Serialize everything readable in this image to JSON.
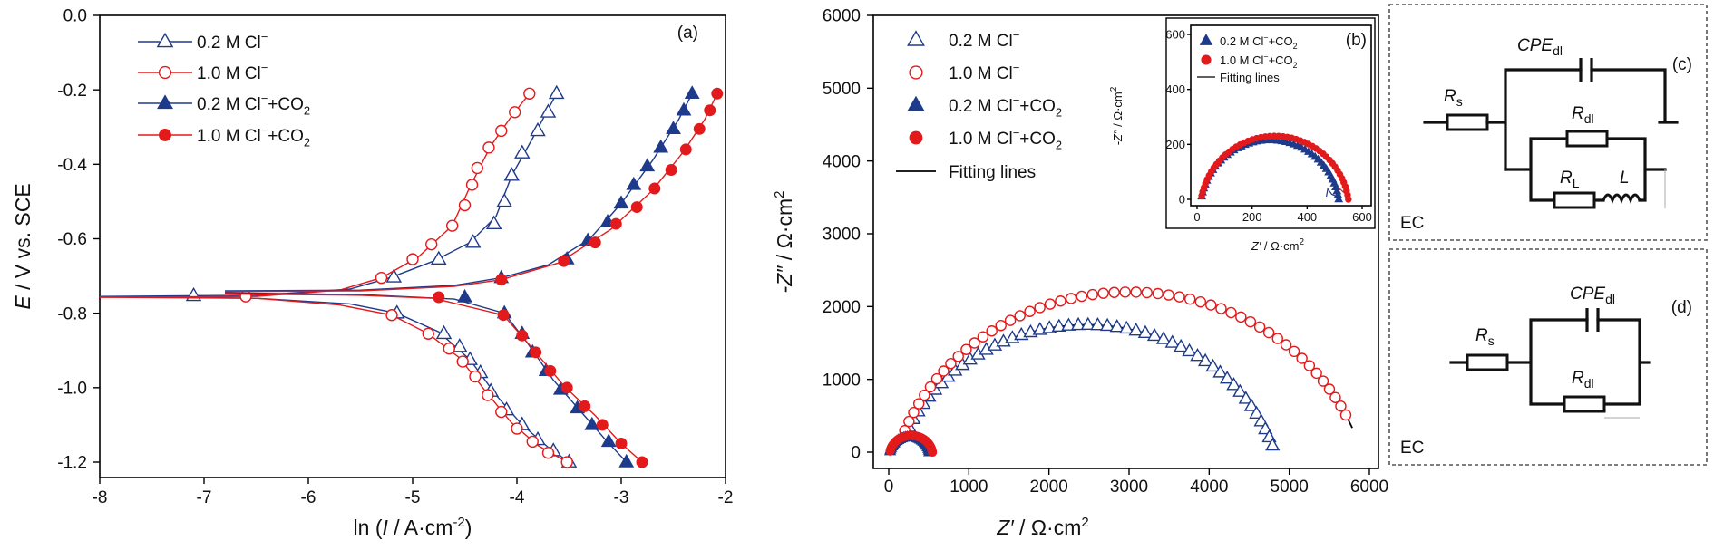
{
  "colors": {
    "blue": "#1e3a8a",
    "red": "#e31a1c",
    "fit": "#000000"
  },
  "chart_data": [
    {
      "type": "line",
      "panel_label": "(a)",
      "xlabel_main": "ln (",
      "xlabel_var": "I",
      "xlabel_unit": " / A·cm",
      "xlabel_sup": "-2",
      "xlabel_close": ")",
      "ylabel_var": "E",
      "ylabel_unit": " / V vs. SCE",
      "xlim": [
        -8,
        -2
      ],
      "ylim": [
        -1.25,
        0.0
      ],
      "xticks": [
        "-8",
        "-7",
        "-6",
        "-5",
        "-4",
        "-3",
        "-2"
      ],
      "xtick_values": [
        -8,
        -7,
        -6,
        -5,
        -4,
        -3,
        -2
      ],
      "yticks": [
        "0.0",
        "-0.2",
        "-0.4",
        "-0.6",
        "-0.8",
        "-1.0",
        "-1.2"
      ],
      "ytick_values": [
        0.0,
        -0.2,
        -0.4,
        -0.6,
        -0.8,
        -1.0,
        -1.2
      ],
      "legend_position": "upper-left",
      "series": [
        {
          "base": "0.2 M Cl",
          "sup": "−",
          "sub": "",
          "sub_tail": "",
          "color": "blue",
          "marker": "triangle-open",
          "points": [
            [
              -7.1,
              -0.753
            ],
            [
              -5.18,
              -0.703
            ],
            [
              -4.75,
              -0.655
            ],
            [
              -4.42,
              -0.61
            ],
            [
              -4.22,
              -0.56
            ],
            [
              -4.12,
              -0.5
            ],
            [
              -4.05,
              -0.43
            ],
            [
              -3.95,
              -0.37
            ],
            [
              -3.8,
              -0.31
            ],
            [
              -3.7,
              -0.26
            ],
            [
              -3.62,
              -0.21
            ],
            [
              -5.15,
              -0.8
            ],
            [
              -4.7,
              -0.855
            ],
            [
              -4.55,
              -0.89
            ],
            [
              -4.45,
              -0.925
            ],
            [
              -4.35,
              -0.96
            ],
            [
              -4.25,
              -1.01
            ],
            [
              -4.1,
              -1.06
            ],
            [
              -3.95,
              -1.1
            ],
            [
              -3.8,
              -1.14
            ],
            [
              -3.65,
              -1.17
            ],
            [
              -3.5,
              -1.2
            ]
          ],
          "branches": [
            [
              [
                -8.0,
                -0.755
              ],
              [
                -6.5,
                -0.752
              ],
              [
                -5.6,
                -0.735
              ],
              [
                -5.2,
                -0.703
              ],
              [
                -4.8,
                -0.66
              ],
              [
                -4.45,
                -0.61
              ],
              [
                -4.2,
                -0.54
              ],
              [
                -4.05,
                -0.43
              ],
              [
                -3.85,
                -0.33
              ],
              [
                -3.62,
                -0.21
              ]
            ],
            [
              [
                -8.0,
                -0.755
              ],
              [
                -6.5,
                -0.76
              ],
              [
                -5.6,
                -0.775
              ],
              [
                -5.15,
                -0.8
              ],
              [
                -4.75,
                -0.85
              ],
              [
                -4.45,
                -0.925
              ],
              [
                -4.2,
                -1.02
              ],
              [
                -3.95,
                -1.1
              ],
              [
                -3.7,
                -1.16
              ],
              [
                -3.5,
                -1.2
              ]
            ]
          ]
        },
        {
          "base": "1.0 M Cl",
          "sup": "−",
          "sub": "",
          "sub_tail": "",
          "color": "red",
          "marker": "circle-open",
          "points": [
            [
              -6.6,
              -0.755
            ],
            [
              -5.3,
              -0.705
            ],
            [
              -5.0,
              -0.655
            ],
            [
              -4.82,
              -0.615
            ],
            [
              -4.62,
              -0.565
            ],
            [
              -4.5,
              -0.51
            ],
            [
              -4.43,
              -0.455
            ],
            [
              -4.38,
              -0.41
            ],
            [
              -4.27,
              -0.355
            ],
            [
              -4.15,
              -0.31
            ],
            [
              -4.02,
              -0.26
            ],
            [
              -3.88,
              -0.21
            ],
            [
              -5.2,
              -0.805
            ],
            [
              -4.85,
              -0.855
            ],
            [
              -4.65,
              -0.895
            ],
            [
              -4.52,
              -0.93
            ],
            [
              -4.4,
              -0.97
            ],
            [
              -4.28,
              -1.02
            ],
            [
              -4.15,
              -1.065
            ],
            [
              -4.0,
              -1.11
            ],
            [
              -3.85,
              -1.145
            ],
            [
              -3.7,
              -1.175
            ],
            [
              -3.52,
              -1.2
            ]
          ],
          "branches": [
            [
              [
                -8.0,
                -0.757
              ],
              [
                -6.5,
                -0.755
              ],
              [
                -5.7,
                -0.738
              ],
              [
                -5.3,
                -0.705
              ],
              [
                -4.95,
                -0.65
              ],
              [
                -4.62,
                -0.565
              ],
              [
                -4.45,
                -0.46
              ],
              [
                -4.25,
                -0.35
              ],
              [
                -4.05,
                -0.27
              ],
              [
                -3.88,
                -0.21
              ]
            ],
            [
              [
                -8.0,
                -0.757
              ],
              [
                -6.5,
                -0.76
              ],
              [
                -5.7,
                -0.778
              ],
              [
                -5.2,
                -0.805
              ],
              [
                -4.85,
                -0.855
              ],
              [
                -4.55,
                -0.92
              ],
              [
                -4.3,
                -1.01
              ],
              [
                -4.05,
                -1.095
              ],
              [
                -3.8,
                -1.155
              ],
              [
                -3.52,
                -1.2
              ]
            ]
          ]
        },
        {
          "base": "0.2 M Cl",
          "sup": "−",
          "sub_prefix": "+CO",
          "sub": "2",
          "color": "blue",
          "marker": "triangle-filled",
          "points": [
            [
              -4.15,
              -0.705
            ],
            [
              -3.52,
              -0.655
            ],
            [
              -3.32,
              -0.605
            ],
            [
              -3.13,
              -0.555
            ],
            [
              -3.0,
              -0.505
            ],
            [
              -2.88,
              -0.455
            ],
            [
              -2.75,
              -0.405
            ],
            [
              -2.62,
              -0.355
            ],
            [
              -2.5,
              -0.305
            ],
            [
              -2.4,
              -0.255
            ],
            [
              -2.32,
              -0.21
            ],
            [
              -4.5,
              -0.757
            ],
            [
              -4.12,
              -0.8
            ],
            [
              -3.95,
              -0.855
            ],
            [
              -3.85,
              -0.905
            ],
            [
              -3.72,
              -0.955
            ],
            [
              -3.58,
              -1.005
            ],
            [
              -3.42,
              -1.055
            ],
            [
              -3.28,
              -1.1
            ],
            [
              -3.12,
              -1.145
            ],
            [
              -2.95,
              -1.2
            ]
          ],
          "branches": [
            [
              [
                -6.8,
                -0.74
              ],
              [
                -5.5,
                -0.738
              ],
              [
                -4.6,
                -0.725
              ],
              [
                -4.15,
                -0.705
              ],
              [
                -3.7,
                -0.67
              ],
              [
                -3.3,
                -0.6
              ],
              [
                -3.0,
                -0.505
              ],
              [
                -2.7,
                -0.39
              ],
              [
                -2.45,
                -0.28
              ],
              [
                -2.32,
                -0.21
              ]
            ],
            [
              [
                -6.8,
                -0.745
              ],
              [
                -5.5,
                -0.75
              ],
              [
                -4.6,
                -0.762
              ],
              [
                -4.12,
                -0.8
              ],
              [
                -3.9,
                -0.88
              ],
              [
                -3.65,
                -0.98
              ],
              [
                -3.4,
                -1.06
              ],
              [
                -3.15,
                -1.14
              ],
              [
                -2.95,
                -1.2
              ]
            ]
          ]
        },
        {
          "base": "1.0 M Cl",
          "sup": "−",
          "sub_prefix": "+CO",
          "sub": "2",
          "color": "red",
          "marker": "circle-filled",
          "points": [
            [
              -4.15,
              -0.71
            ],
            [
              -3.55,
              -0.66
            ],
            [
              -3.25,
              -0.61
            ],
            [
              -3.05,
              -0.56
            ],
            [
              -2.85,
              -0.515
            ],
            [
              -2.68,
              -0.465
            ],
            [
              -2.52,
              -0.415
            ],
            [
              -2.38,
              -0.36
            ],
            [
              -2.25,
              -0.305
            ],
            [
              -2.15,
              -0.255
            ],
            [
              -2.08,
              -0.21
            ],
            [
              -4.75,
              -0.757
            ],
            [
              -4.13,
              -0.805
            ],
            [
              -3.95,
              -0.86
            ],
            [
              -3.82,
              -0.905
            ],
            [
              -3.68,
              -0.955
            ],
            [
              -3.52,
              -1.0
            ],
            [
              -3.35,
              -1.05
            ],
            [
              -3.18,
              -1.1
            ],
            [
              -3.0,
              -1.15
            ],
            [
              -2.8,
              -1.2
            ]
          ],
          "branches": [
            [
              [
                -6.8,
                -0.742
              ],
              [
                -5.5,
                -0.74
              ],
              [
                -4.6,
                -0.728
              ],
              [
                -4.15,
                -0.71
              ],
              [
                -3.6,
                -0.665
              ],
              [
                -3.1,
                -0.575
              ],
              [
                -2.7,
                -0.47
              ],
              [
                -2.4,
                -0.365
              ],
              [
                -2.2,
                -0.28
              ],
              [
                -2.08,
                -0.21
              ]
            ],
            [
              [
                -6.8,
                -0.748
              ],
              [
                -5.5,
                -0.752
              ],
              [
                -4.8,
                -0.76
              ],
              [
                -4.13,
                -0.805
              ],
              [
                -3.85,
                -0.895
              ],
              [
                -3.55,
                -0.995
              ],
              [
                -3.25,
                -1.075
              ],
              [
                -3.0,
                -1.15
              ],
              [
                -2.8,
                -1.2
              ]
            ]
          ]
        }
      ]
    },
    {
      "type": "scatter",
      "panel_label": "",
      "xlabel_var": "Z′",
      "xlabel_unit": " / Ω·cm",
      "xlabel_sup": "2",
      "ylabel_var": "-Z″",
      "ylabel_unit": " / Ω·cm",
      "ylabel_sup": "2",
      "xlim": [
        -200,
        6000
      ],
      "ylim": [
        -200,
        6000
      ],
      "xticks": [
        "0",
        "1000",
        "2000",
        "3000",
        "4000",
        "5000",
        "6000"
      ],
      "xtick_values": [
        0,
        1000,
        2000,
        3000,
        4000,
        5000,
        6000
      ],
      "yticks": [
        "0",
        "1000",
        "2000",
        "3000",
        "4000",
        "5000",
        "6000"
      ],
      "ytick_values": [
        0,
        1000,
        2000,
        3000,
        4000,
        5000,
        6000
      ],
      "legend_position": "upper-left",
      "fit_label": "Fitting lines",
      "series": [
        {
          "base": "0.2 M Cl",
          "sup": "−",
          "sub_prefix": "",
          "sub": "",
          "color": "blue",
          "marker": "triangle-open",
          "arc": {
            "rs": 120,
            "rct": 4700,
            "depress": 0.7,
            "start": 0.04,
            "end": 0.985,
            "n": 50
          }
        },
        {
          "base": "1.0 M Cl",
          "sup": "−",
          "sub_prefix": "",
          "sub": "",
          "color": "red",
          "marker": "circle-open",
          "arc": {
            "rs": 100,
            "rct": 5800,
            "depress": 0.72,
            "start": 0.04,
            "end": 0.93,
            "n": 52
          }
        },
        {
          "base": "0.2 M Cl",
          "sup": "−",
          "sub_prefix": "+CO",
          "sub": "2",
          "color": "blue",
          "marker": "triangle-filled",
          "arc": {
            "rs": 15,
            "rct": 490,
            "depress": 0.85,
            "start": 0.02,
            "end": 1.0,
            "n": 30
          }
        },
        {
          "base": "1.0 M Cl",
          "sup": "−",
          "sub_prefix": "+CO",
          "sub": "2",
          "color": "red",
          "marker": "circle-filled",
          "arc": {
            "rs": 15,
            "rct": 530,
            "depress": 0.85,
            "start": 0.02,
            "end": 1.0,
            "n": 30
          }
        }
      ],
      "fits": [
        {
          "rs": 120,
          "rct": 4700,
          "depress": 0.7,
          "start": 0.1,
          "end": 0.985
        },
        {
          "rs": 100,
          "rct": 5800,
          "depress": 0.72,
          "start": 0.1,
          "end": 0.955
        }
      ]
    },
    {
      "type": "scatter",
      "panel_label": "(b)",
      "xlabel_var": "Z′",
      "xlabel_unit": " / Ω·cm",
      "xlabel_sup": "2",
      "ylabel_var": "-Z″",
      "ylabel_unit": " / Ω·cm",
      "ylabel_sup": "2",
      "xlim": [
        -30,
        620
      ],
      "ylim": [
        -30,
        620
      ],
      "xticks": [
        "0",
        "200",
        "400",
        "600"
      ],
      "xtick_values": [
        0,
        200,
        400,
        600
      ],
      "yticks": [
        "0",
        "200",
        "400",
        "600"
      ],
      "ytick_values": [
        0,
        200,
        400,
        600
      ],
      "legend_position": "upper-left",
      "fit_label": "Fitting lines",
      "series": [
        {
          "base": "0.2 M Cl",
          "sup": "−",
          "sub_prefix": "+CO",
          "sub": "2",
          "color": "blue",
          "marker": "triangle-filled",
          "arc": {
            "rs": 15,
            "rct": 500,
            "depress": 0.85,
            "start": 0.015,
            "end": 1.0,
            "n": 48
          }
        },
        {
          "base": "1.0 M Cl",
          "sup": "−",
          "sub_prefix": "+CO",
          "sub": "2",
          "color": "red",
          "marker": "circle-filled",
          "arc": {
            "rs": 15,
            "rct": 535,
            "depress": 0.85,
            "start": 0.015,
            "end": 1.0,
            "n": 48
          }
        }
      ],
      "tails": [
        {
          "color": "blue",
          "points": [
            [
              515,
              8
            ],
            [
              490,
              18
            ],
            [
              475,
              38
            ],
            [
              470,
              10
            ]
          ]
        },
        {
          "color": "red",
          "points": [
            [
              550,
              10
            ],
            [
              528,
              30
            ],
            [
              512,
              45
            ]
          ]
        }
      ]
    }
  ],
  "circuits": {
    "c": {
      "panel_label": "(c)",
      "ec_label": "EC",
      "cpe_base": "CPE",
      "cpe_sub": "dl",
      "rs_base": "R",
      "rs_sub": "s",
      "rdl_base": "R",
      "rdl_sub": "dl",
      "rl_base": "R",
      "rl_sub": "L",
      "l_label": "L"
    },
    "d": {
      "panel_label": "(d)",
      "ec_label": "EC",
      "cpe_base": "CPE",
      "cpe_sub": "dl",
      "rs_base": "R",
      "rs_sub": "s",
      "rdl_base": "R",
      "rdl_sub": "dl"
    }
  }
}
